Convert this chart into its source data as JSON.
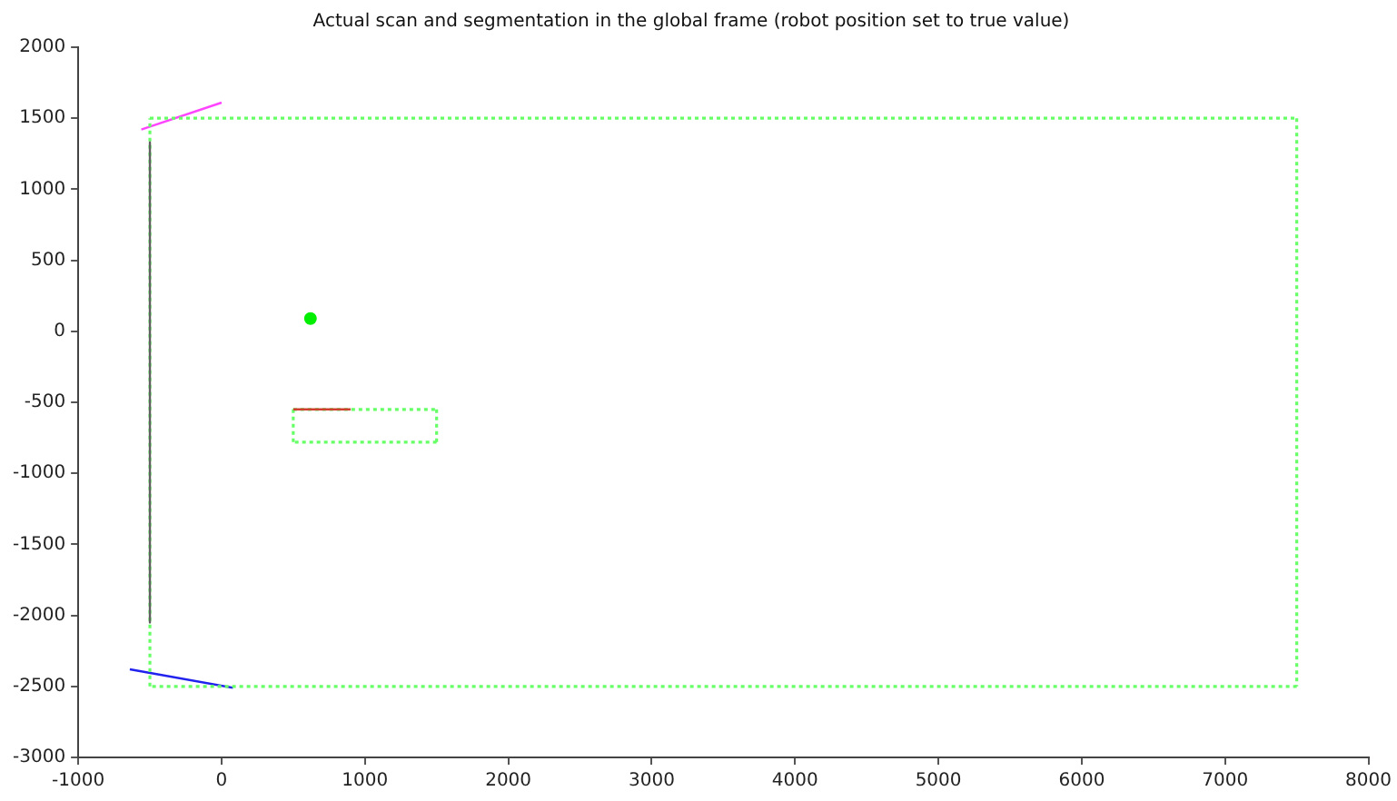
{
  "chart_data": {
    "type": "line",
    "title": "Actual scan and segmentation in the global frame (robot position set to true value)",
    "xlim": [
      -1000,
      8000
    ],
    "ylim": [
      -3000,
      2000
    ],
    "xticks": [
      -1000,
      0,
      1000,
      2000,
      3000,
      4000,
      5000,
      6000,
      7000,
      8000
    ],
    "yticks": [
      -3000,
      -2500,
      -2000,
      -1500,
      -1000,
      -500,
      0,
      500,
      1000,
      1500,
      2000
    ],
    "grid": false,
    "legend": false,
    "marker": "none",
    "series": [
      {
        "type": "line",
        "color": "#606060",
        "line_style": "solid",
        "x": [
          -500,
          -500
        ],
        "values": [
          1330,
          -2050
        ]
      },
      {
        "type": "line",
        "color": "#d04030",
        "line_style": "solid",
        "x": [
          500,
          900
        ],
        "values": [
          -550,
          -550
        ]
      },
      {
        "type": "line",
        "color": "#66ff66",
        "line_style": "dotted",
        "x": [
          -500,
          7500
        ],
        "values": [
          1500,
          1500
        ]
      },
      {
        "type": "line",
        "color": "#66ff66",
        "line_style": "dotted",
        "x": [
          7500,
          7500
        ],
        "values": [
          1500,
          -2500
        ]
      },
      {
        "type": "line",
        "color": "#66ff66",
        "line_style": "dotted",
        "x": [
          7500,
          -500
        ],
        "values": [
          -2500,
          -2500
        ]
      },
      {
        "type": "line",
        "color": "#66ff66",
        "line_style": "dotted",
        "x": [
          -500,
          -500
        ],
        "values": [
          -2500,
          1500
        ]
      },
      {
        "type": "line",
        "color": "#66ff66",
        "line_style": "dotted",
        "x": [
          500,
          1500
        ],
        "values": [
          -550,
          -550
        ]
      },
      {
        "type": "line",
        "color": "#66ff66",
        "line_style": "dotted",
        "x": [
          1500,
          1500
        ],
        "values": [
          -550,
          -780
        ]
      },
      {
        "type": "line",
        "color": "#66ff66",
        "line_style": "dotted",
        "x": [
          1500,
          500
        ],
        "values": [
          -780,
          -780
        ]
      },
      {
        "type": "line",
        "color": "#66ff66",
        "line_style": "dotted",
        "x": [
          500,
          500
        ],
        "values": [
          -780,
          -550
        ]
      },
      {
        "type": "line",
        "color": "#ff44ff",
        "line_style": "solid",
        "x": [
          -560,
          0
        ],
        "values": [
          1420,
          1610
        ]
      },
      {
        "type": "line",
        "color": "#2222ee",
        "line_style": "solid",
        "x": [
          -640,
          80
        ],
        "values": [
          -2380,
          -2510
        ]
      },
      {
        "type": "scatter",
        "color": "#00ee00",
        "marker": "circle",
        "x": [
          620
        ],
        "values": [
          90
        ]
      }
    ]
  }
}
